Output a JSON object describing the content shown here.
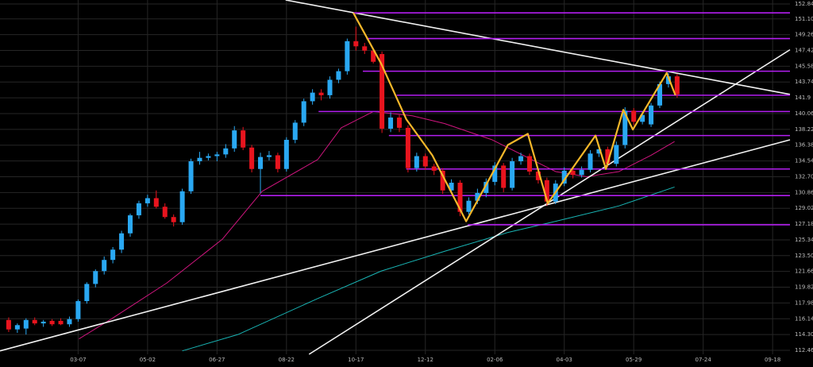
{
  "chart_data": {
    "type": "candlestick",
    "xlim": [
      0,
      91
    ],
    "ylim": [
      112.0,
      153.3
    ],
    "grid": true,
    "xticks": [
      {
        "value": 9,
        "label": "03-07"
      },
      {
        "value": 17,
        "label": "05-02"
      },
      {
        "value": 25,
        "label": "06-27"
      },
      {
        "value": 33,
        "label": "08-22"
      },
      {
        "value": 41,
        "label": "10-17"
      },
      {
        "value": 49,
        "label": "12-12"
      },
      {
        "value": 57,
        "label": "02-06"
      },
      {
        "value": 65,
        "label": "04-03"
      },
      {
        "value": 73,
        "label": "05-29"
      },
      {
        "value": 81,
        "label": "07-24"
      },
      {
        "value": 89,
        "label": "09-18"
      }
    ],
    "yticks": [
      152.84,
      {
        "value": 151.1,
        "label": "151.10"
      },
      149.26,
      147.42,
      145.58,
      143.74,
      141.9,
      140.06,
      138.22,
      136.38,
      134.54,
      {
        "value": 132.7,
        "label": "132.70"
      },
      130.86,
      129.02,
      127.18,
      125.34,
      {
        "value": 123.5,
        "label": "123.50"
      },
      121.66,
      119.82,
      117.98,
      116.14,
      {
        "value": 114.3,
        "label": "114.30"
      },
      112.46
    ],
    "up_color": "#2aa8f2",
    "down_color": "#e8141e",
    "x": [
      1,
      2,
      3,
      4,
      5,
      6,
      7,
      8,
      9,
      10,
      11,
      12,
      13,
      14,
      15,
      16,
      17,
      18,
      19,
      20,
      21,
      22,
      23,
      24,
      25,
      26,
      27,
      28,
      29,
      30,
      31,
      32,
      33,
      34,
      35,
      36,
      37,
      38,
      39,
      40,
      41,
      42,
      43,
      44,
      45,
      46,
      47,
      48,
      49,
      50,
      51,
      52,
      53,
      54,
      55,
      56,
      57,
      58,
      59,
      60,
      61,
      62,
      63,
      64,
      65,
      66,
      67,
      68,
      69,
      70,
      71,
      72,
      73,
      74,
      75,
      76,
      77,
      78
    ],
    "open": [
      116.0,
      114.9,
      115.0,
      116.0,
      115.6,
      115.9,
      115.9,
      115.5,
      116.1,
      118.2,
      120.2,
      121.7,
      123.0,
      124.2,
      126.1,
      128.2,
      129.6,
      130.2,
      129.2,
      128.0,
      127.4,
      131.0,
      134.5,
      134.9,
      135.1,
      135.3,
      136.0,
      138.1,
      136.1,
      133.6,
      135.0,
      135.2,
      133.6,
      137.0,
      139.0,
      141.5,
      142.5,
      142.2,
      144.0,
      145.0,
      148.5,
      147.9,
      147.4,
      147.0,
      138.3,
      139.6,
      138.4,
      133.7,
      135.1,
      133.9,
      133.4,
      131.1,
      132.0,
      128.6,
      129.9,
      130.8,
      132.1,
      134.0,
      131.4,
      134.5,
      135.1,
      133.3,
      132.3,
      129.8,
      131.9,
      133.4,
      132.9,
      133.5,
      135.4,
      135.9,
      134.2,
      136.4,
      140.4,
      139.1,
      138.8,
      141.0,
      143.5,
      144.4
    ],
    "high": [
      116.3,
      115.6,
      116.2,
      116.3,
      116.0,
      116.1,
      116.2,
      116.4,
      118.4,
      120.4,
      121.9,
      123.4,
      124.5,
      126.4,
      128.4,
      129.9,
      130.6,
      131.1,
      129.6,
      128.3,
      131.3,
      134.8,
      135.6,
      135.4,
      135.6,
      136.5,
      138.6,
      138.5,
      136.4,
      135.5,
      135.7,
      135.5,
      137.3,
      139.3,
      141.8,
      142.9,
      142.9,
      144.4,
      145.3,
      148.8,
      150.2,
      148.3,
      147.7,
      147.3,
      140.2,
      139.9,
      138.7,
      135.5,
      135.4,
      134.2,
      133.7,
      132.4,
      132.3,
      130.3,
      131.3,
      132.5,
      134.4,
      134.3,
      134.9,
      135.5,
      135.4,
      133.6,
      132.6,
      132.3,
      133.8,
      133.7,
      133.9,
      135.8,
      136.3,
      136.2,
      136.8,
      140.8,
      140.7,
      140.3,
      141.3,
      143.8,
      144.8,
      144.7
    ],
    "low": [
      114.6,
      114.5,
      114.3,
      115.4,
      115.2,
      115.3,
      115.4,
      115.2,
      115.8,
      117.9,
      119.8,
      121.3,
      122.6,
      123.8,
      125.7,
      127.8,
      129.2,
      129.0,
      127.8,
      126.9,
      127.1,
      130.7,
      134.1,
      134.6,
      134.5,
      134.9,
      135.6,
      135.8,
      133.2,
      130.8,
      134.6,
      133.2,
      133.3,
      136.6,
      138.6,
      141.1,
      141.6,
      141.8,
      143.6,
      144.6,
      147.4,
      147.0,
      145.9,
      137.8,
      137.9,
      137.9,
      133.2,
      133.3,
      133.5,
      132.9,
      130.7,
      130.8,
      128.1,
      128.3,
      129.5,
      130.3,
      131.7,
      130.9,
      131.1,
      134.1,
      132.9,
      131.9,
      129.3,
      129.5,
      131.6,
      132.5,
      132.6,
      133.2,
      135.0,
      133.8,
      133.9,
      136.0,
      138.7,
      138.8,
      138.5,
      140.7,
      143.1,
      141.9
    ],
    "close": [
      114.9,
      115.4,
      116.0,
      115.6,
      115.8,
      115.5,
      115.5,
      116.1,
      118.2,
      120.2,
      121.7,
      123.0,
      124.2,
      126.1,
      128.2,
      129.6,
      130.2,
      129.2,
      128.0,
      127.4,
      131.0,
      134.5,
      134.9,
      135.1,
      135.3,
      136.0,
      138.1,
      136.1,
      133.6,
      135.0,
      135.2,
      133.6,
      137.0,
      139.0,
      141.5,
      142.5,
      142.2,
      144.0,
      145.0,
      148.5,
      147.9,
      147.4,
      146.1,
      138.3,
      139.6,
      138.4,
      133.7,
      135.1,
      133.9,
      133.4,
      131.1,
      132.0,
      128.6,
      129.9,
      130.8,
      132.1,
      134.0,
      131.4,
      134.5,
      135.1,
      133.3,
      132.3,
      129.8,
      131.9,
      133.4,
      132.9,
      133.5,
      135.4,
      135.9,
      134.2,
      136.4,
      140.4,
      139.1,
      139.9,
      141.0,
      143.5,
      144.4,
      142.3
    ],
    "series": [
      {
        "color": "#d0157f",
        "x": [
          9.1,
          12.8,
          19.2,
          25.6,
          30.2,
          36.6,
          39.3,
          43,
          47.5,
          51.2,
          56.7,
          64,
          67.6,
          71.3,
          75,
          77.7
        ],
        "values": [
          113.8,
          116.1,
          120.3,
          125.4,
          131.0,
          134.7,
          138.4,
          140.3,
          139.8,
          138.9,
          137.0,
          133.3,
          132.7,
          133.3,
          135.2,
          136.8
        ]
      },
      {
        "color": "#19b5b5",
        "x": [
          21,
          27.4,
          36.6,
          43.9,
          51.2,
          58.5,
          64,
          71.3,
          77.7
        ],
        "values": [
          112.4,
          114.3,
          118.5,
          121.7,
          124.0,
          126.2,
          127.5,
          129.3,
          131.5
        ]
      }
    ],
    "levels": {
      "color": "#b31ef0",
      "x": [
        40.7,
        42.2,
        41.8,
        45.7,
        36.7,
        44.8,
        46.8,
        30,
        53.9
      ],
      "values": [
        151.8,
        148.8,
        145.0,
        142.2,
        140.3,
        137.5,
        133.6,
        130.5,
        127.1
      ]
    },
    "trendlines": {
      "color": "#f2f2f2",
      "lines": [
        {
          "x": [
            32.9,
            91
          ],
          "values": [
            153.3,
            142.3
          ]
        },
        {
          "x": [
            0,
            91
          ],
          "values": [
            112.4,
            137.0
          ]
        },
        {
          "x": [
            35.6,
            91
          ],
          "values": [
            112.0,
            147.5
          ]
        }
      ]
    },
    "zigzag": {
      "color": "#f5b82a",
      "x": [
        40.7,
        43.9,
        46.8,
        49.8,
        53.7,
        58.5,
        60.8,
        63.1,
        68.6,
        69.8,
        71.8,
        72.9,
        76.8,
        77.8
      ],
      "values": [
        151.8,
        145.9,
        139.4,
        135.2,
        127.5,
        136.4,
        137.7,
        129.6,
        137.5,
        133.6,
        140.5,
        138.2,
        144.8,
        142.2
      ]
    }
  }
}
